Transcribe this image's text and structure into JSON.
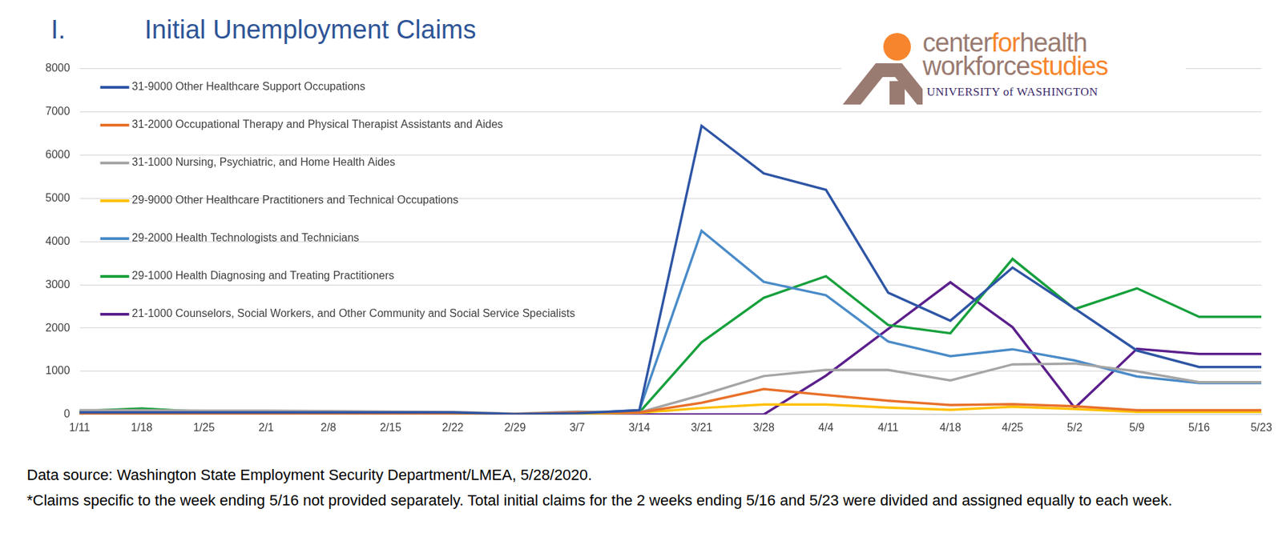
{
  "chart_data": {
    "type": "line",
    "title": "Initial Unemployment Claims",
    "categories": [
      "1/11",
      "1/18",
      "1/25",
      "2/1",
      "2/8",
      "2/15",
      "2/22",
      "2/29",
      "3/7",
      "3/14",
      "3/21",
      "3/28",
      "4/4",
      "4/11",
      "4/18",
      "4/25",
      "5/2",
      "5/9",
      "5/16",
      "5/23"
    ],
    "series": [
      {
        "name": "31-9000 Other Healthcare Support Occupations",
        "color": "#2E55A5",
        "values": [
          50,
          50,
          50,
          50,
          50,
          50,
          50,
          10,
          30,
          100,
          6680,
          5580,
          5200,
          2820,
          2170,
          3400,
          2450,
          1480,
          1100,
          1100
        ]
      },
      {
        "name": "31-2000 Occupational Therapy and Physical Therapist Assistants and Aides",
        "color": "#E8702A",
        "values": [
          30,
          30,
          30,
          30,
          30,
          30,
          30,
          10,
          50,
          50,
          270,
          590,
          450,
          320,
          220,
          240,
          190,
          100,
          100,
          100
        ]
      },
      {
        "name": "31-1000 Nursing, Psychiatric, and Home Health Aides",
        "color": "#A5A5A5",
        "values": [
          100,
          100,
          90,
          90,
          80,
          70,
          60,
          20,
          70,
          50,
          450,
          890,
          1030,
          1030,
          790,
          1160,
          1180,
          1000,
          750,
          750
        ]
      },
      {
        "name": "29-9000 Other Healthcare Practitioners and Technical Occupations",
        "color": "#FFC000",
        "values": [
          30,
          30,
          30,
          30,
          30,
          30,
          30,
          10,
          20,
          40,
          150,
          230,
          230,
          160,
          110,
          180,
          130,
          60,
          60,
          60
        ]
      },
      {
        "name": "29-2000 Health Technologists and Technicians",
        "color": "#4A8BC8",
        "values": [
          50,
          50,
          50,
          50,
          50,
          50,
          50,
          10,
          30,
          100,
          4250,
          3070,
          2760,
          1690,
          1350,
          1510,
          1250,
          880,
          730,
          730
        ]
      },
      {
        "name": "29-1000 Health Diagnosing and Treating Practitioners",
        "color": "#16A03C",
        "values": [
          80,
          140,
          60,
          40,
          40,
          40,
          40,
          10,
          30,
          50,
          1670,
          2700,
          3200,
          2070,
          1880,
          3600,
          2440,
          2920,
          2260,
          2260
        ]
      },
      {
        "name": "21-1000 Counselors, Social Workers, and Other Community and Social Service Specialists",
        "color": "#5B1F8C",
        "values": [
          0,
          0,
          0,
          0,
          0,
          0,
          0,
          0,
          0,
          0,
          0,
          0,
          900,
          1980,
          3060,
          2020,
          150,
          1520,
          1400,
          1400
        ]
      }
    ],
    "ylim": [
      0,
      8000
    ],
    "yticks": [
      0,
      1000,
      2000,
      3000,
      4000,
      5000,
      6000,
      7000,
      8000
    ],
    "grid": "y",
    "legend": "upper left",
    "annotations": [
      "Data source:  Washington State Employment Security Department/LMEA, 5/28/2020.",
      "*Claims specific to the week ending 5/16 not provided separately. Total initial claims for the 2 weeks ending 5/16 and 5/23 were divided and assigned equally to each week."
    ]
  },
  "section_number": "I.",
  "logo": {
    "line1": [
      "center",
      "for",
      "health"
    ],
    "line2": [
      "workforce",
      "studies"
    ],
    "line3": "UNIVERSITY of WASHINGTON"
  }
}
